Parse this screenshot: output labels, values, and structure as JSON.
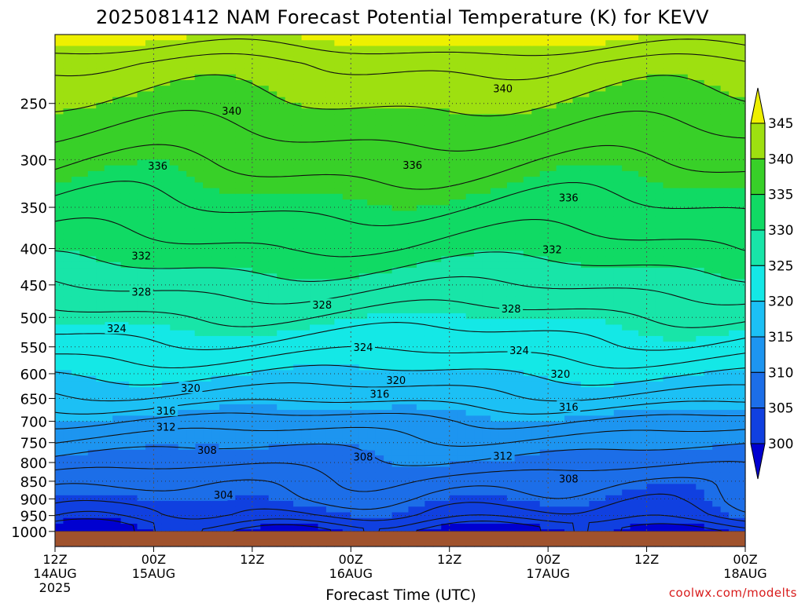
{
  "chart_data": {
    "type": "heatmap",
    "title": "2025081412 NAM Forecast Potential Temperature (K) for KEVV",
    "xlabel": "Forecast Time (UTC)",
    "ylabel": "",
    "x_ticks": [
      {
        "hour": 0,
        "label": "12Z",
        "sub": [
          "14AUG",
          "2025"
        ]
      },
      {
        "hour": 12,
        "label": "00Z",
        "sub": [
          "15AUG"
        ]
      },
      {
        "hour": 24,
        "label": "12Z",
        "sub": []
      },
      {
        "hour": 36,
        "label": "00Z",
        "sub": [
          "16AUG"
        ]
      },
      {
        "hour": 48,
        "label": "12Z",
        "sub": []
      },
      {
        "hour": 60,
        "label": "00Z",
        "sub": [
          "17AUG"
        ]
      },
      {
        "hour": 72,
        "label": "12Z",
        "sub": []
      },
      {
        "hour": 84,
        "label": "00Z",
        "sub": [
          "18AUG"
        ]
      }
    ],
    "xlim": [
      0,
      84
    ],
    "y_axis": {
      "scale": "log",
      "direction": "pressure decreasing upward",
      "ylim_hPa": [
        1050,
        200
      ],
      "ticks": [
        250,
        300,
        350,
        400,
        450,
        500,
        550,
        600,
        650,
        700,
        750,
        800,
        850,
        900,
        950,
        1000
      ]
    },
    "surface_hPa": 1000,
    "grid": true,
    "colorbar": {
      "placement": "right",
      "labels": [
        "300",
        "305",
        "310",
        "315",
        "320",
        "325",
        "330",
        "335",
        "340",
        "345"
      ],
      "levels": [
        300,
        305,
        310,
        315,
        320,
        325,
        330,
        335,
        340,
        345
      ],
      "colors": [
        "#0000d0",
        "#1040e0",
        "#1c6ee8",
        "#1d95f0",
        "#1cc0f5",
        "#14e8e6",
        "#18e5a8",
        "#10da64",
        "#38d028",
        "#9ee010",
        "#eef000"
      ]
    },
    "contour_labels": [
      {
        "text": "340",
        "hour": 21.5,
        "p": 256
      },
      {
        "text": "340",
        "hour": 54.5,
        "p": 238
      },
      {
        "text": "336",
        "hour": 12.5,
        "p": 306
      },
      {
        "text": "336",
        "hour": 43.5,
        "p": 305
      },
      {
        "text": "336",
        "hour": 62.5,
        "p": 339
      },
      {
        "text": "332",
        "hour": 10.5,
        "p": 409
      },
      {
        "text": "332",
        "hour": 60.5,
        "p": 401
      },
      {
        "text": "328",
        "hour": 10.5,
        "p": 460
      },
      {
        "text": "328",
        "hour": 32.5,
        "p": 480
      },
      {
        "text": "328",
        "hour": 55.5,
        "p": 486
      },
      {
        "text": "324",
        "hour": 7.5,
        "p": 518
      },
      {
        "text": "324",
        "hour": 37.5,
        "p": 550
      },
      {
        "text": "324",
        "hour": 56.5,
        "p": 556
      },
      {
        "text": "320",
        "hour": 16.5,
        "p": 628
      },
      {
        "text": "320",
        "hour": 41.5,
        "p": 612
      },
      {
        "text": "320",
        "hour": 61.5,
        "p": 600
      },
      {
        "text": "316",
        "hour": 13.5,
        "p": 676
      },
      {
        "text": "316",
        "hour": 39.5,
        "p": 640
      },
      {
        "text": "316",
        "hour": 62.5,
        "p": 668
      },
      {
        "text": "312",
        "hour": 13.5,
        "p": 712
      },
      {
        "text": "312",
        "hour": 54.5,
        "p": 783
      },
      {
        "text": "308",
        "hour": 18.5,
        "p": 768
      },
      {
        "text": "308",
        "hour": 37.5,
        "p": 785
      },
      {
        "text": "308",
        "hour": 62.5,
        "p": 843
      },
      {
        "text": "304",
        "hour": 20.5,
        "p": 888
      }
    ]
  },
  "credit": "coolwx.com/modelts"
}
